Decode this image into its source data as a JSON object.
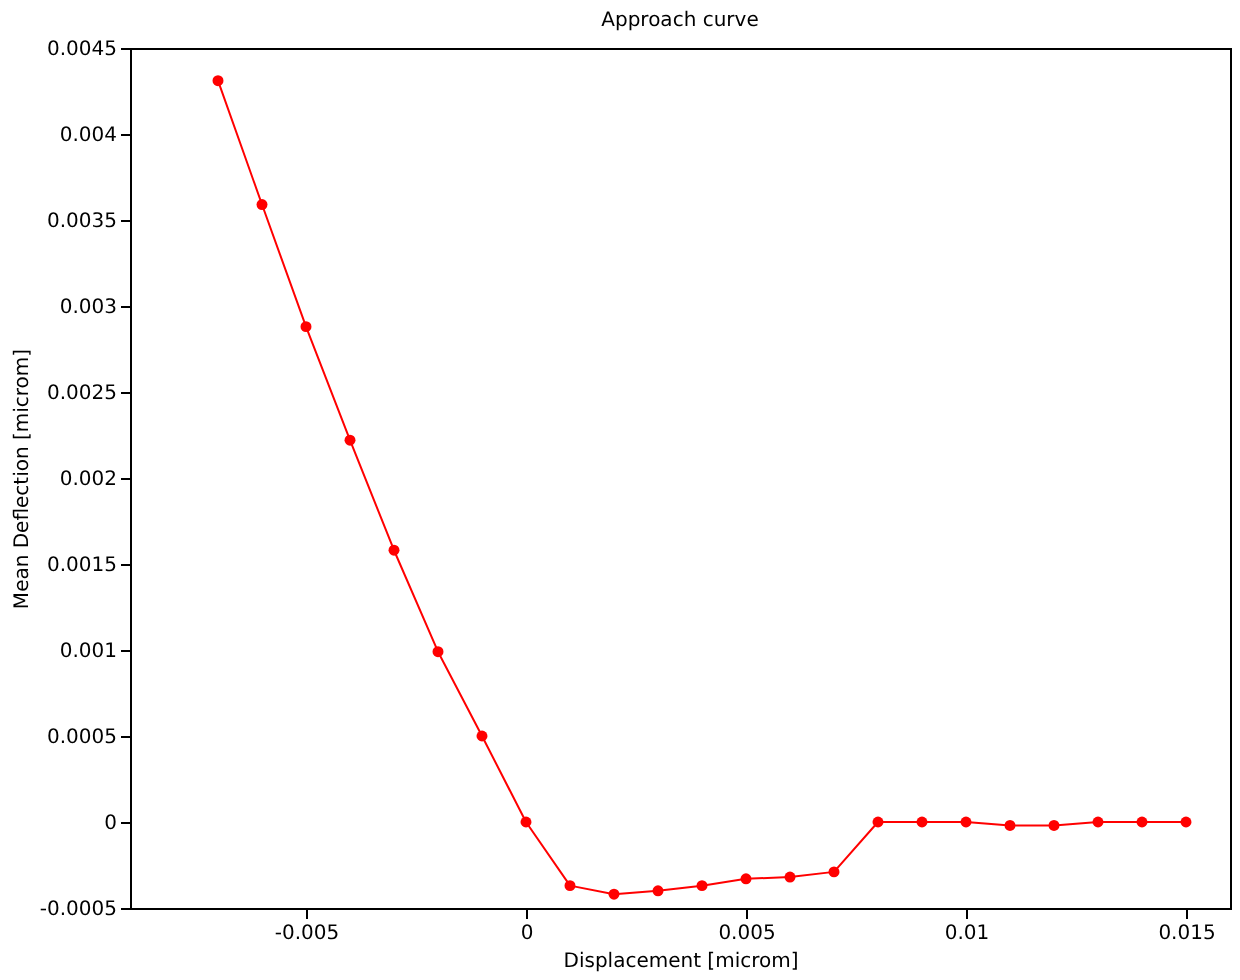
{
  "chart_data": {
    "type": "line",
    "title": "Approach curve",
    "xlabel": "Displacement [microm]",
    "ylabel": "Mean Deflection [microm]",
    "x": [
      -0.007,
      -0.006,
      -0.005,
      -0.004,
      -0.003,
      -0.002,
      -0.001,
      0,
      0.001,
      0.002,
      0.003,
      0.004,
      0.005,
      0.006,
      0.007,
      0.008,
      0.009,
      0.01,
      0.011,
      0.012,
      0.013,
      0.014,
      0.015
    ],
    "series": [
      {
        "color": "#ff0000",
        "values": [
          0.00431,
          0.00359,
          0.00288,
          0.00222,
          0.00158,
          0.00099,
          0.0005,
          0,
          -0.00037,
          -0.00042,
          -0.0004,
          -0.00037,
          -0.00033,
          -0.00032,
          -0.00029,
          0,
          0,
          0,
          -2e-05,
          -2e-05,
          0,
          0,
          0
        ]
      }
    ],
    "xlim": [
      -0.009,
      0.016
    ],
    "xticks": [
      -0.005,
      0,
      0.005,
      0.01,
      0.015
    ],
    "ylim": [
      -0.0005,
      0.0045
    ],
    "yticks": [
      -0.0005,
      0,
      0.0005,
      0.001,
      0.0015,
      0.002,
      0.0025,
      0.003,
      0.0035,
      0.004,
      0.0045
    ],
    "marker": "circle",
    "line_style": "solid",
    "grid": false
  }
}
